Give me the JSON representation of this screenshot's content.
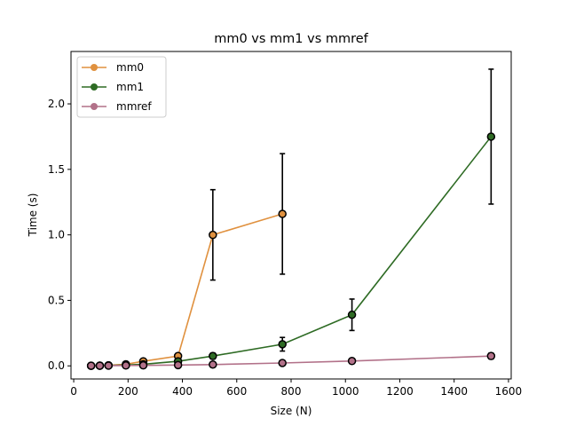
{
  "chart_data": {
    "type": "line",
    "title": "mm0 vs mm1 vs mmref",
    "xlabel": "Size (N)",
    "ylabel": "Time (s)",
    "xlim": [
      -10,
      1610
    ],
    "ylim": [
      -0.1,
      2.4
    ],
    "xticks": [
      0,
      200,
      400,
      600,
      800,
      1000,
      1200,
      1400,
      1600
    ],
    "yticks": [
      0.0,
      0.5,
      1.0,
      1.5,
      2.0
    ],
    "xtick_labels": [
      "0",
      "200",
      "400",
      "600",
      "800",
      "1000",
      "1200",
      "1400",
      "1600"
    ],
    "ytick_labels": [
      "0.0",
      "0.5",
      "1.0",
      "1.5",
      "2.0"
    ],
    "grid": false,
    "legend_position": "top-left",
    "series": [
      {
        "name": "mm0",
        "color": "#e0913f",
        "points": [
          {
            "x": 64,
            "y": 0.001,
            "err": 0.0
          },
          {
            "x": 96,
            "y": 0.002,
            "err": 0.0
          },
          {
            "x": 128,
            "y": 0.004,
            "err": 0.0
          },
          {
            "x": 192,
            "y": 0.012,
            "err": 0.003
          },
          {
            "x": 256,
            "y": 0.035,
            "err": 0.008
          },
          {
            "x": 384,
            "y": 0.075,
            "err": 0.02
          },
          {
            "x": 512,
            "y": 1.0,
            "err": 0.345
          },
          {
            "x": 768,
            "y": 1.16,
            "err": 0.46
          }
        ]
      },
      {
        "name": "mm1",
        "color": "#2e6b24",
        "points": [
          {
            "x": 64,
            "y": 0.001,
            "err": 0.0
          },
          {
            "x": 96,
            "y": 0.002,
            "err": 0.0
          },
          {
            "x": 128,
            "y": 0.003,
            "err": 0.0
          },
          {
            "x": 192,
            "y": 0.006,
            "err": 0.002
          },
          {
            "x": 256,
            "y": 0.012,
            "err": 0.004
          },
          {
            "x": 384,
            "y": 0.035,
            "err": 0.01
          },
          {
            "x": 512,
            "y": 0.075,
            "err": 0.022
          },
          {
            "x": 768,
            "y": 0.165,
            "err": 0.052
          },
          {
            "x": 1024,
            "y": 0.39,
            "err": 0.12
          },
          {
            "x": 1536,
            "y": 1.75,
            "err": 0.515
          }
        ]
      },
      {
        "name": "mmref",
        "color": "#b27189",
        "points": [
          {
            "x": 64,
            "y": 0.001,
            "err": 0.0
          },
          {
            "x": 96,
            "y": 0.001,
            "err": 0.0
          },
          {
            "x": 128,
            "y": 0.002,
            "err": 0.0
          },
          {
            "x": 192,
            "y": 0.003,
            "err": 0.001
          },
          {
            "x": 256,
            "y": 0.004,
            "err": 0.001
          },
          {
            "x": 384,
            "y": 0.006,
            "err": 0.002
          },
          {
            "x": 512,
            "y": 0.01,
            "err": 0.003
          },
          {
            "x": 768,
            "y": 0.022,
            "err": 0.006
          },
          {
            "x": 1024,
            "y": 0.037,
            "err": 0.012
          },
          {
            "x": 1536,
            "y": 0.075,
            "err": 0.022
          }
        ]
      }
    ]
  }
}
